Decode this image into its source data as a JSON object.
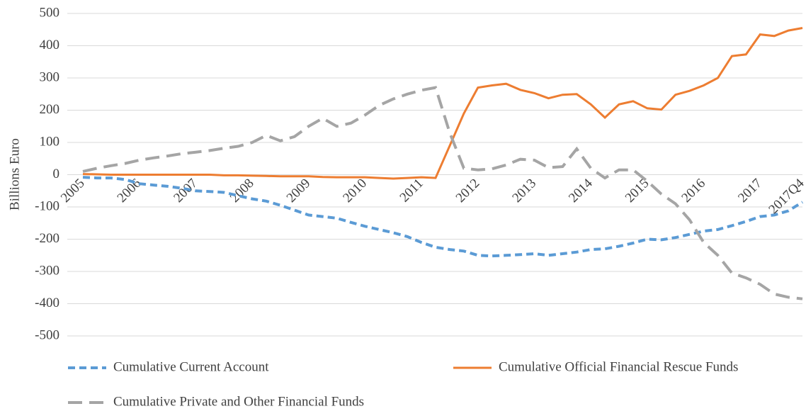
{
  "chart_data": {
    "type": "line",
    "y_label": "Billions Euro",
    "categories": [
      "2005",
      null,
      null,
      null,
      "2006",
      null,
      null,
      null,
      "2007",
      null,
      null,
      null,
      "2008",
      null,
      null,
      null,
      "2009",
      null,
      null,
      null,
      "2010",
      null,
      null,
      null,
      "2011",
      null,
      null,
      null,
      "2012",
      null,
      null,
      null,
      "2013",
      null,
      null,
      null,
      "2014",
      null,
      null,
      null,
      "2015",
      null,
      null,
      null,
      "2016",
      null,
      null,
      null,
      "2017",
      null,
      null,
      "2017Q4"
    ],
    "ylim": [
      -500,
      500
    ],
    "yticks": [
      -500,
      -400,
      -300,
      -200,
      -100,
      0,
      100,
      200,
      300,
      400,
      500
    ],
    "grid": true,
    "legend": "bottom",
    "series": [
      {
        "name": "Cumulative Current Account",
        "color": "#5b9bd5",
        "dash": "dashed",
        "values": [
          -8,
          -10,
          -10,
          -15,
          -28,
          -32,
          -36,
          -42,
          -50,
          -52,
          -55,
          -65,
          -75,
          -82,
          -95,
          -110,
          -125,
          -130,
          -135,
          -148,
          -160,
          -170,
          -180,
          -192,
          -210,
          -225,
          -232,
          -237,
          -250,
          -252,
          -250,
          -248,
          -245,
          -250,
          -245,
          -240,
          -232,
          -230,
          -222,
          -212,
          -200,
          -202,
          -195,
          -185,
          -175,
          -170,
          -158,
          -145,
          -130,
          -125,
          -112,
          -85
        ]
      },
      {
        "name": "Cumulative Official Financial Rescue Funds",
        "color": "#ed7d31",
        "dash": "solid",
        "values": [
          2,
          1,
          0,
          0,
          0,
          0,
          0,
          0,
          0,
          0,
          -2,
          -2,
          -3,
          -4,
          -5,
          -5,
          -5,
          -7,
          -8,
          -8,
          -8,
          -10,
          -12,
          -10,
          -8,
          -10,
          90,
          190,
          270,
          277,
          282,
          263,
          253,
          237,
          248,
          250,
          218,
          177,
          218,
          228,
          206,
          202,
          248,
          260,
          277,
          300,
          368,
          373,
          435,
          430,
          447,
          455
        ]
      },
      {
        "name": "Cumulative Private and Other Financial Funds",
        "color": "#a5a5a5",
        "dash": "longdash",
        "values": [
          10,
          20,
          28,
          35,
          45,
          52,
          58,
          65,
          70,
          75,
          82,
          88,
          100,
          122,
          105,
          118,
          150,
          175,
          150,
          160,
          185,
          215,
          235,
          250,
          262,
          270,
          130,
          20,
          15,
          18,
          30,
          48,
          45,
          22,
          25,
          80,
          20,
          -10,
          15,
          15,
          -20,
          -60,
          -90,
          -140,
          -210,
          -250,
          -305,
          -320,
          -340,
          -370,
          -380,
          -385
        ]
      }
    ]
  }
}
